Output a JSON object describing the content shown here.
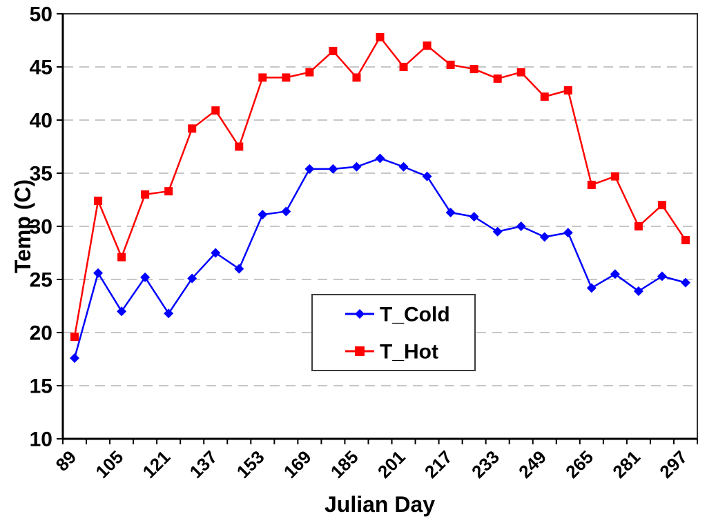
{
  "chart_data": {
    "type": "line",
    "title": "",
    "xlabel": "Julian Day",
    "ylabel": "Temp (C)",
    "x": [
      89,
      97,
      105,
      113,
      121,
      129,
      137,
      145,
      153,
      161,
      169,
      177,
      185,
      193,
      201,
      209,
      217,
      225,
      233,
      241,
      249,
      257,
      265,
      273,
      281,
      289,
      297
    ],
    "x_tick_labels": [
      "89",
      "105",
      "121",
      "137",
      "153",
      "169",
      "185",
      "201",
      "217",
      "233",
      "249",
      "265",
      "281",
      "297"
    ],
    "x_label_every": 2,
    "ylim": [
      10,
      50
    ],
    "ytick_step": 5,
    "ytick_labels": [
      "10",
      "15",
      "20",
      "25",
      "30",
      "35",
      "40",
      "45",
      "50"
    ],
    "grid": "horizontal dashed",
    "legend_position": "inside lower-center",
    "series": [
      {
        "name": "T_Cold",
        "color": "#0000ff",
        "marker": "diamond",
        "values": [
          17.6,
          25.6,
          22.0,
          25.2,
          21.8,
          25.1,
          27.5,
          26.0,
          31.1,
          31.4,
          35.4,
          35.4,
          35.6,
          36.4,
          35.6,
          34.7,
          31.3,
          30.9,
          29.5,
          30.0,
          29.0,
          29.4,
          24.2,
          25.5,
          23.9,
          25.3,
          24.7
        ]
      },
      {
        "name": "T_Hot",
        "color": "#ff0000",
        "marker": "square",
        "values": [
          19.6,
          32.4,
          27.1,
          33.0,
          33.3,
          39.2,
          40.9,
          37.5,
          44.0,
          44.0,
          44.5,
          46.5,
          44.0,
          47.8,
          45.0,
          47.0,
          45.2,
          44.8,
          43.9,
          44.5,
          42.2,
          42.8,
          33.9,
          34.7,
          30.0,
          32.0,
          28.7
        ]
      }
    ],
    "colors": {
      "background": "#ffffff",
      "grid": "#c7c7c7",
      "axis": "#000000",
      "plot_border": "#2f2f2f",
      "legend_border": "#3c3c3c"
    }
  }
}
